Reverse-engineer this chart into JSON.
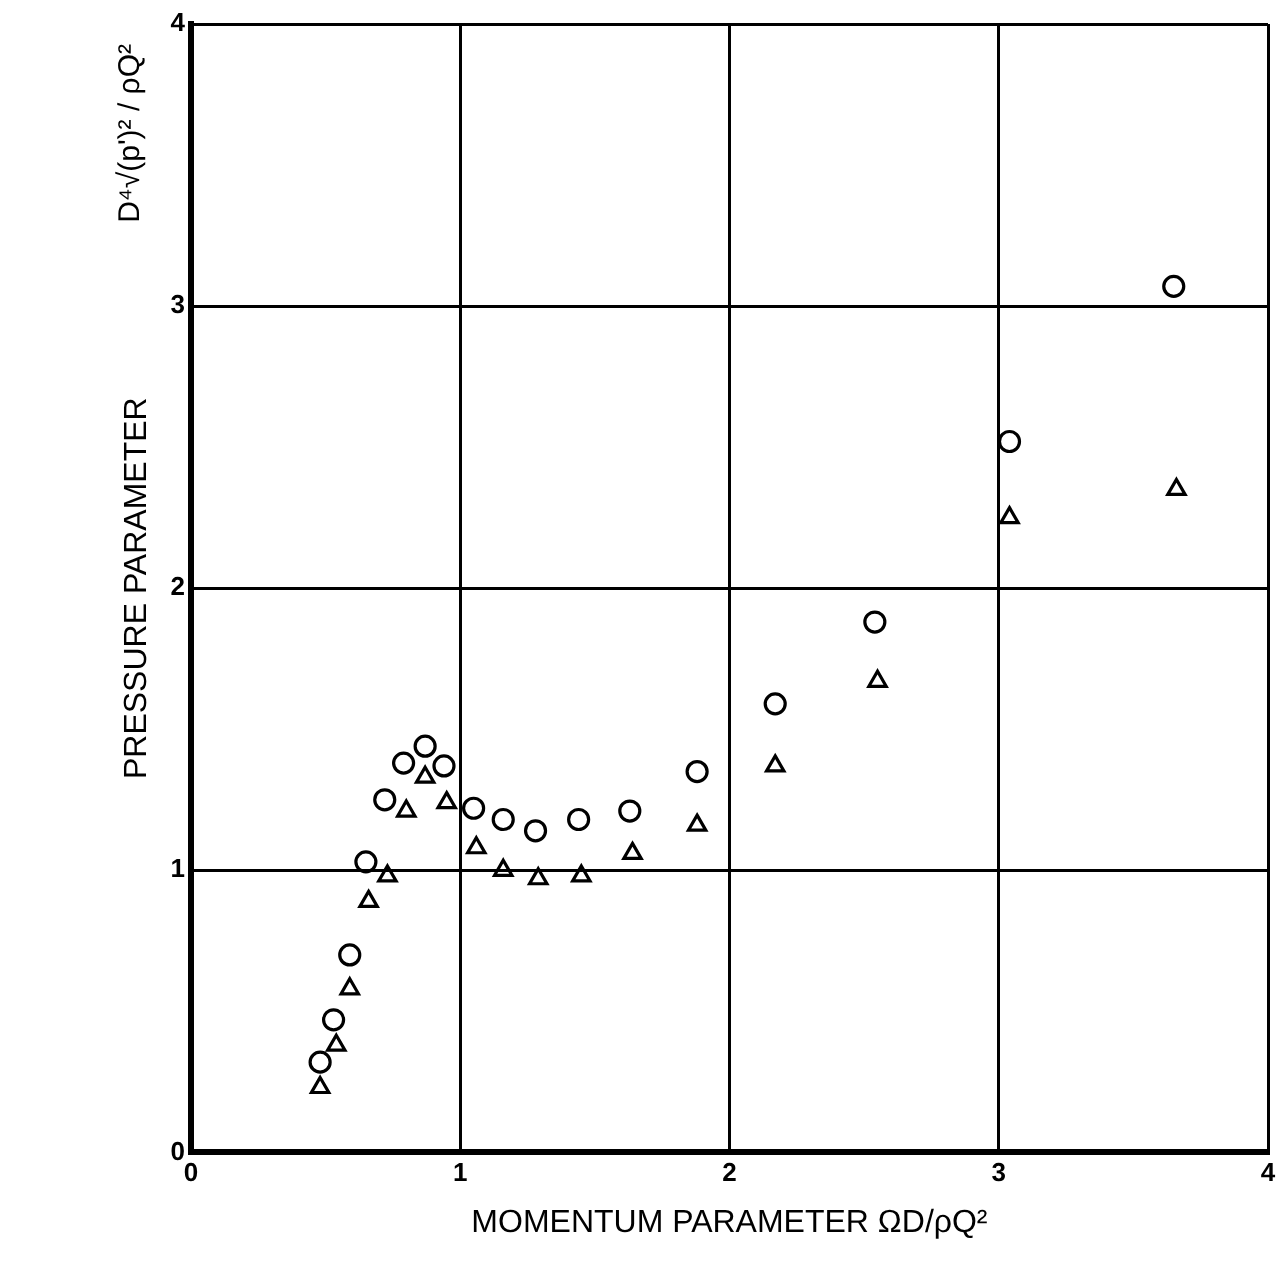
{
  "chart_data": {
    "type": "scatter",
    "xlabel": "MOMENTUM PARAMETER ΩD/ρQ²",
    "ylabel": "PRESSURE PARAMETER",
    "annotations": [
      "D⁴√(p')² / ρQ²"
    ],
    "xlim": [
      0,
      4
    ],
    "xticks": [
      0,
      1,
      2,
      3,
      4
    ],
    "ylim": [
      0,
      4
    ],
    "yticks": [
      0,
      1,
      2,
      3,
      4
    ],
    "grid": true,
    "legend": false,
    "series": [
      {
        "color": "#000000",
        "marker": "circle",
        "x": [
          0.48,
          0.53,
          0.59,
          0.65,
          0.72,
          0.79,
          0.87,
          0.94,
          1.05,
          1.16,
          1.28,
          1.44,
          1.63,
          1.88,
          2.17,
          2.54,
          3.04,
          3.65
        ],
        "values": [
          0.32,
          0.47,
          0.7,
          1.03,
          1.25,
          1.38,
          1.44,
          1.37,
          1.22,
          1.18,
          1.14,
          1.18,
          1.21,
          1.35,
          1.59,
          1.88,
          2.52,
          3.07
        ]
      },
      {
        "color": "#000000",
        "marker": "triangle",
        "x": [
          0.48,
          0.54,
          0.59,
          0.66,
          0.73,
          0.8,
          0.87,
          0.95,
          1.06,
          1.16,
          1.29,
          1.45,
          1.64,
          1.88,
          2.17,
          2.55,
          3.04,
          3.66
        ],
        "values": [
          0.23,
          0.38,
          0.58,
          0.89,
          0.98,
          1.21,
          1.33,
          1.24,
          1.08,
          1.0,
          0.97,
          0.98,
          1.06,
          1.16,
          1.37,
          1.67,
          2.25,
          2.35
        ]
      }
    ]
  }
}
